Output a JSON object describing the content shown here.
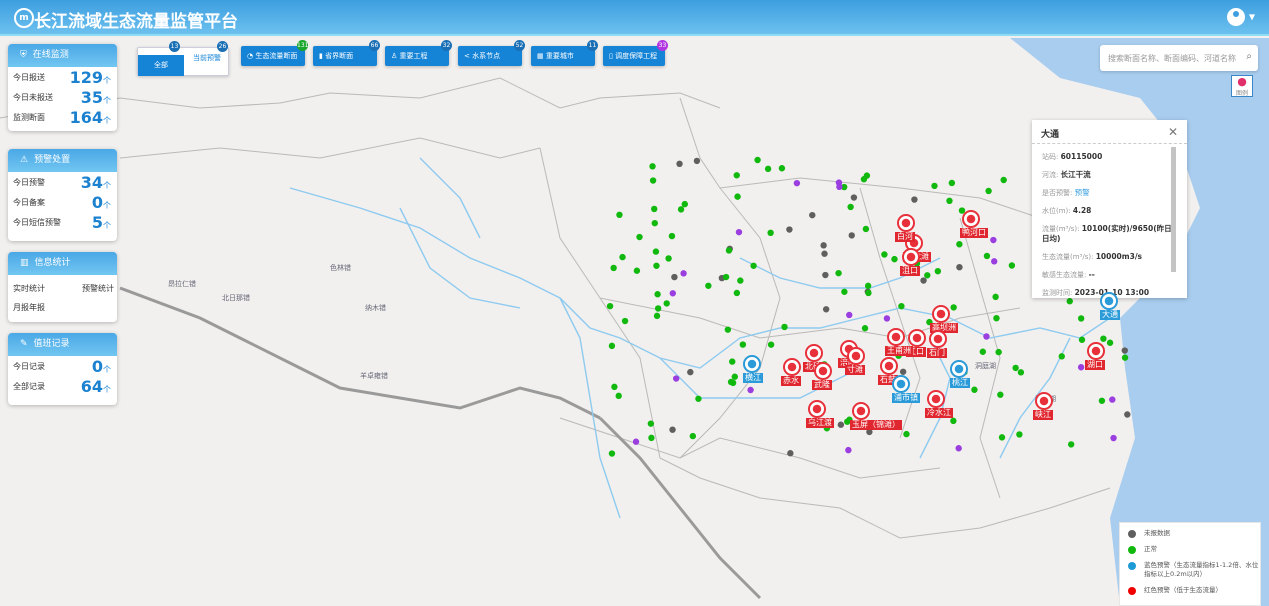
{
  "header": {
    "title": "长江流域生态流量监管平台",
    "logo": "m"
  },
  "cards": {
    "online": {
      "title": "在线监测",
      "rows": [
        {
          "label": "今日报送",
          "value": "129"
        },
        {
          "label": "今日未报送",
          "value": "35"
        },
        {
          "label": "监测断面",
          "value": "164"
        }
      ]
    },
    "warning": {
      "title": "预警处置",
      "rows": [
        {
          "label": "今日预警",
          "value": "34"
        },
        {
          "label": "今日备案",
          "value": "0"
        },
        {
          "label": "今日短信预警",
          "value": "5"
        }
      ]
    },
    "stats": {
      "title": "信息统计",
      "links": [
        "实时统计",
        "预警统计",
        "月报年报"
      ]
    },
    "duty": {
      "title": "值班记录",
      "rows": [
        {
          "label": "今日记录",
          "value": "0"
        },
        {
          "label": "全部记录",
          "value": "64"
        }
      ]
    },
    "unit": "个"
  },
  "filter_tabs": [
    {
      "label": "全部",
      "count": "13",
      "active": true
    },
    {
      "label": "当前预警",
      "count": "26"
    }
  ],
  "layer_buttons": [
    {
      "label": "生态流量断面",
      "count": "131",
      "badge_color": "#1aa52b"
    },
    {
      "label": "省界断面",
      "count": "66",
      "badge_color": "#1a6fb5"
    },
    {
      "label": "重要工程",
      "count": "32",
      "badge_color": "#1a6fb5"
    },
    {
      "label": "水系节点",
      "count": "52",
      "badge_color": "#1a6fb5"
    },
    {
      "label": "重要城市",
      "count": "11",
      "badge_color": "#1a6fb5"
    },
    {
      "label": "调度保障工程",
      "count": "33",
      "badge_color": "#b236e0"
    }
  ],
  "search": {
    "placeholder": "搜索断面名称、断面编码、河道名称"
  },
  "legend_button": "图例",
  "popup": {
    "title": "大通",
    "fields": [
      {
        "label": "站码:",
        "value": "60115000"
      },
      {
        "label": "河流:",
        "value": "长江干流"
      },
      {
        "label": "是否预警:",
        "value": "预警"
      },
      {
        "label": "水位(m):",
        "value": "4.28"
      },
      {
        "label": "流量(m³/s):",
        "value": "10100(实时)/9650(昨日日均)"
      },
      {
        "label": "生态流量(m³/s):",
        "value": "10000m3/s"
      },
      {
        "label": "敏感生态流量:",
        "value": "--"
      },
      {
        "label": "监测时间:",
        "value": "2023-01-10 13:00"
      }
    ]
  },
  "legend": [
    {
      "label": "未报数据",
      "color": "#5f5f5f"
    },
    {
      "label": "正常",
      "color": "#11b80e"
    },
    {
      "label": "蓝色预警（生态流量指标1-1.2倍、水位指标以上0.2m以内）",
      "color": "#1e9ad6"
    },
    {
      "label": "红色预警（低于生态流量）",
      "color": "#f00000"
    }
  ],
  "map_labels": [
    "昂拉仁错",
    "北日那错",
    "色林错",
    "纳木错",
    "羊卓雍错",
    "洞庭湖",
    "鄱阳湖"
  ],
  "red_markers": [
    "鸭河口",
    "黄龙滩",
    "白河",
    "沮口",
    "高坝洲",
    "赤水",
    "北碚",
    "武隆",
    "涪陵",
    "寸滩",
    "石门",
    "江口",
    "王甫洲",
    "石鼓",
    "乌江渡",
    "玉屏（锦滩）",
    "冷水江",
    "湖口",
    "峡江"
  ],
  "blue_markers": [
    "大通",
    "横江",
    "浦市镇",
    "桃江"
  ]
}
